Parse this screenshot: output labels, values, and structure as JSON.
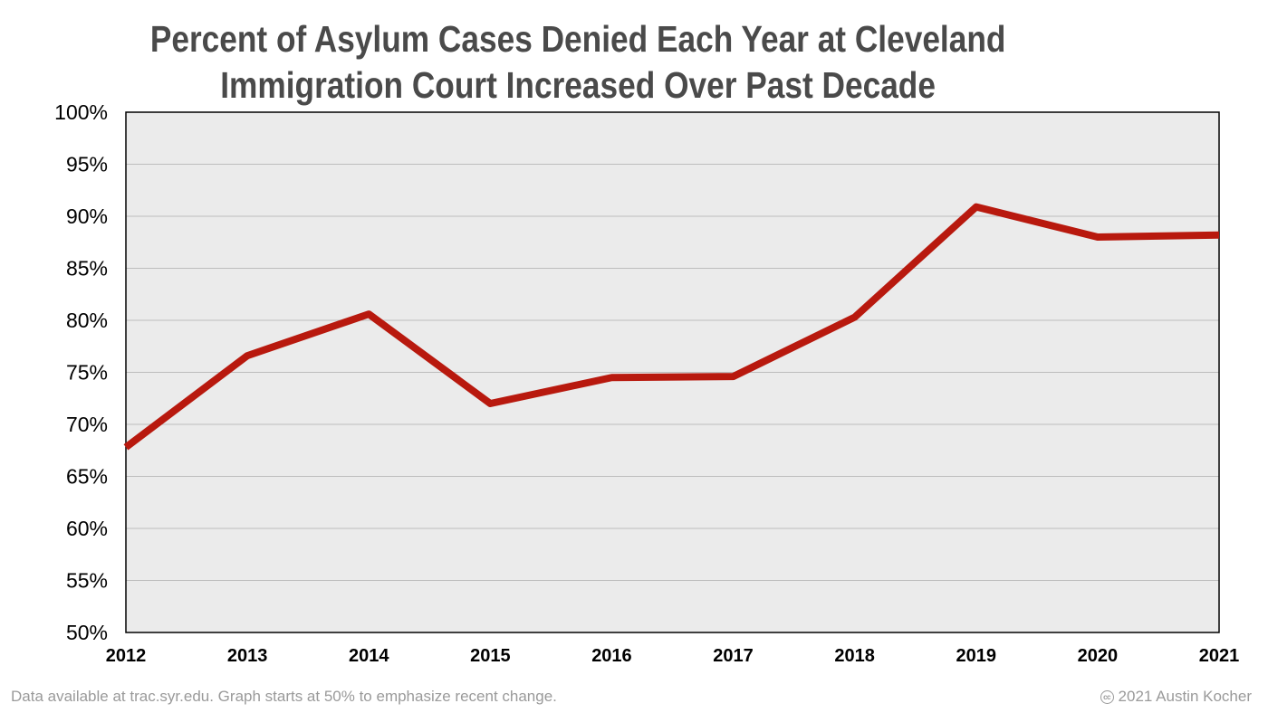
{
  "chart_data": {
    "type": "line",
    "title_lines": [
      "Percent of Asylum Cases Denied Each Year at Cleveland",
      "Immigration Court Increased Over Past Decade"
    ],
    "xlabel": "",
    "ylabel": "",
    "categories": [
      "2012",
      "2013",
      "2014",
      "2015",
      "2016",
      "2017",
      "2018",
      "2019",
      "2020",
      "2021"
    ],
    "values": [
      67.8,
      76.6,
      80.6,
      72.0,
      74.5,
      74.6,
      80.3,
      90.9,
      88.0,
      88.2
    ],
    "ylim": [
      50,
      100
    ],
    "yticks": [
      50,
      55,
      60,
      65,
      70,
      75,
      80,
      85,
      90,
      95,
      100
    ],
    "ytick_format": "%",
    "grid": true,
    "legend": "none",
    "line_color": "#b8190e",
    "plot_background": "#ebebeb",
    "gridline_color": "#bdbdbd"
  },
  "footer": {
    "source_note": "Data available at trac.syr.edu. Graph starts at 50% to emphasize recent change.",
    "cc_icon": "cc-icon",
    "cc_text": "cc",
    "credit": "2021 Austin Kocher"
  }
}
